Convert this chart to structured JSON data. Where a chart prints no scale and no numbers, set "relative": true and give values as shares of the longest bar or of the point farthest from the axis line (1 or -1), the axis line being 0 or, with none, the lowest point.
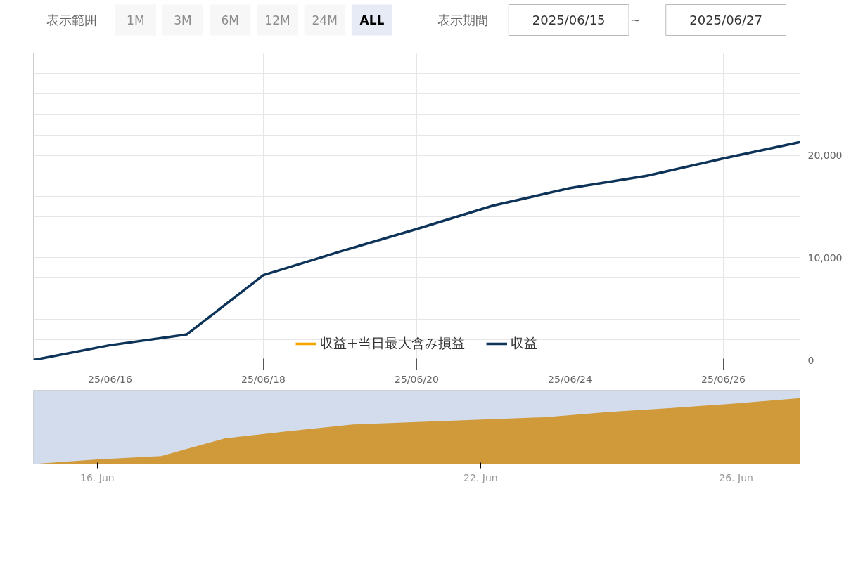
{
  "chart_data": [
    {
      "type": "line",
      "annotations": [
        "表示範囲",
        "1M",
        "3M",
        "6M",
        "12M",
        "24M",
        "ALL",
        "表示期間",
        "2025/06/15",
        "~",
        "2025/06/27"
      ],
      "categories": [
        null,
        "25/06/16",
        null,
        "25/06/18",
        null,
        "25/06/20",
        null,
        "25/06/24",
        null,
        "25/06/26",
        null
      ],
      "series": [
        {
          "name": "収益+当日最大含み損益",
          "color": "#f7a300",
          "values": [
            null,
            null,
            null,
            null,
            null,
            null,
            null,
            null,
            null,
            null,
            null
          ]
        },
        {
          "name": "収益",
          "color": "#0d3358",
          "values": [
            0,
            1450,
            2500,
            8300,
            10600,
            12800,
            15100,
            16800,
            18000,
            19700,
            21300
          ]
        }
      ],
      "ylim": [
        0,
        30000
      ],
      "yticks": [
        0,
        {
          "value": 2000,
          "label": null
        },
        {
          "value": 4000,
          "label": null
        },
        {
          "value": 6000,
          "label": null
        },
        {
          "value": 8000,
          "label": null
        },
        {
          "value": 10000,
          "label": "10,000"
        },
        {
          "value": 12000,
          "label": null
        },
        {
          "value": 14000,
          "label": null
        },
        {
          "value": 16000,
          "label": null
        },
        {
          "value": 18000,
          "label": null
        },
        {
          "value": 20000,
          "label": "20,000"
        },
        {
          "value": 22000,
          "label": null
        },
        {
          "value": 24000,
          "label": null
        },
        {
          "value": 26000,
          "label": null
        },
        {
          "value": 28000,
          "label": null
        }
      ],
      "grid": true,
      "legend": "bottom",
      "marker": "none",
      "line_style": "solid"
    },
    {
      "type": "area",
      "x": [
        "2025-06-15",
        "2025-06-16",
        "2025-06-17",
        "2025-06-18",
        "2025-06-19",
        "2025-06-20",
        "2025-06-23",
        "2025-06-24",
        "2025-06-25",
        "2025-06-26",
        "2025-06-27"
      ],
      "series": [
        {
          "color": "#d09a3b",
          "values": [
            0,
            0.07,
            0.12,
            0.39,
            0.5,
            0.6,
            0.71,
            0.79,
            0.85,
            0.92,
            1
          ]
        }
      ],
      "relative": true,
      "xlim": [
        "2025-06-15",
        "2025-06-27"
      ],
      "xticks": [
        {
          "value": "2025-06-16",
          "label": "16. Jun"
        },
        {
          "value": "2025-06-22",
          "label": "22. Jun"
        },
        {
          "value": "2025-06-26",
          "label": "26. Jun"
        }
      ],
      "bands": [
        {
          "axis": "x",
          "from": "2025-06-15",
          "to": "2025-06-27",
          "color": "#d3dcec"
        }
      ],
      "grid": "x",
      "tick_labels": "x"
    }
  ]
}
